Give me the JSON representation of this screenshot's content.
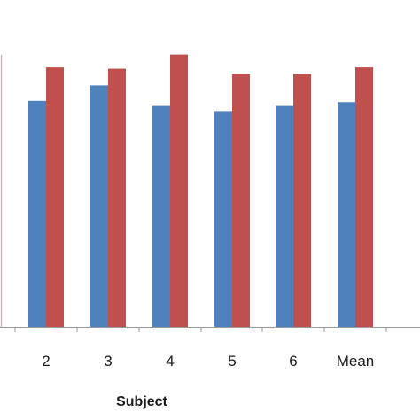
{
  "chart_data": {
    "type": "bar",
    "categories": [
      "2",
      "3",
      "4",
      "5",
      "6",
      "Mean"
    ],
    "series": [
      {
        "values": [
          88,
          94,
          86,
          84,
          86,
          87.5
        ],
        "color": "#4f81bd"
      },
      {
        "values": [
          101,
          100.5,
          106,
          98.5,
          98.5,
          101
        ],
        "color": "#c0504d"
      }
    ],
    "xlabel": "Subject",
    "ylabel": "",
    "ylim": [
      0,
      125
    ],
    "grid": false,
    "legend": "none"
  }
}
